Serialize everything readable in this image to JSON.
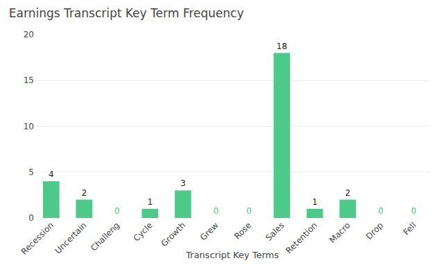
{
  "chart_data": {
    "type": "bar",
    "title": "Earnings Transcript Key Term Frequency",
    "xlabel": "Transcript Key Terms",
    "categories": [
      "Recession",
      "Uncertain",
      "Challeng",
      "Cycle",
      "Growth",
      "Grew",
      "Rose",
      "Sales",
      "Retention",
      "Macro",
      "Drop",
      "Fell"
    ],
    "values": [
      4,
      2,
      0,
      1,
      3,
      0,
      0,
      18,
      1,
      2,
      0,
      0
    ],
    "color": "#4dca8a",
    "ylim": [
      0,
      20
    ],
    "yticks": [
      0,
      5,
      10,
      15,
      20
    ],
    "grid": true,
    "data_labels": true
  }
}
